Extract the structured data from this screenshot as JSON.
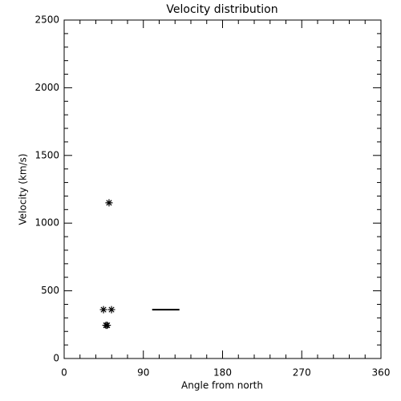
{
  "chart_data": {
    "type": "scatter",
    "title": "Velocity distribution",
    "x_label": "Angle from north",
    "y_label": "Velocity (km/s)",
    "series": [
      {
        "x": [
          51,
          44.7,
          53.8,
          47.5,
          49
        ],
        "values": [
          1150,
          361,
          361,
          245,
          245
        ],
        "color": "#000000",
        "marker": "asterisk"
      }
    ],
    "segments": [
      {
        "x": [
          100,
          131
        ],
        "values": [
          361,
          361
        ],
        "color": "#000000"
      }
    ],
    "xlim": [
      0,
      360
    ],
    "ylim": [
      0,
      2500
    ],
    "xticks": [
      0,
      90,
      180,
      270,
      360
    ],
    "yticks": [
      0,
      500,
      1000,
      1500,
      2000,
      2500
    ],
    "xminorticks": [
      18,
      36,
      54,
      72,
      108,
      126,
      144,
      162,
      198,
      216,
      234,
      252,
      288,
      306,
      324,
      342
    ],
    "yminorticks": [
      100,
      200,
      300,
      400,
      600,
      700,
      800,
      900,
      1100,
      1200,
      1300,
      1400,
      1600,
      1700,
      1800,
      1900,
      2100,
      2200,
      2300,
      2400
    ],
    "grid": false
  }
}
